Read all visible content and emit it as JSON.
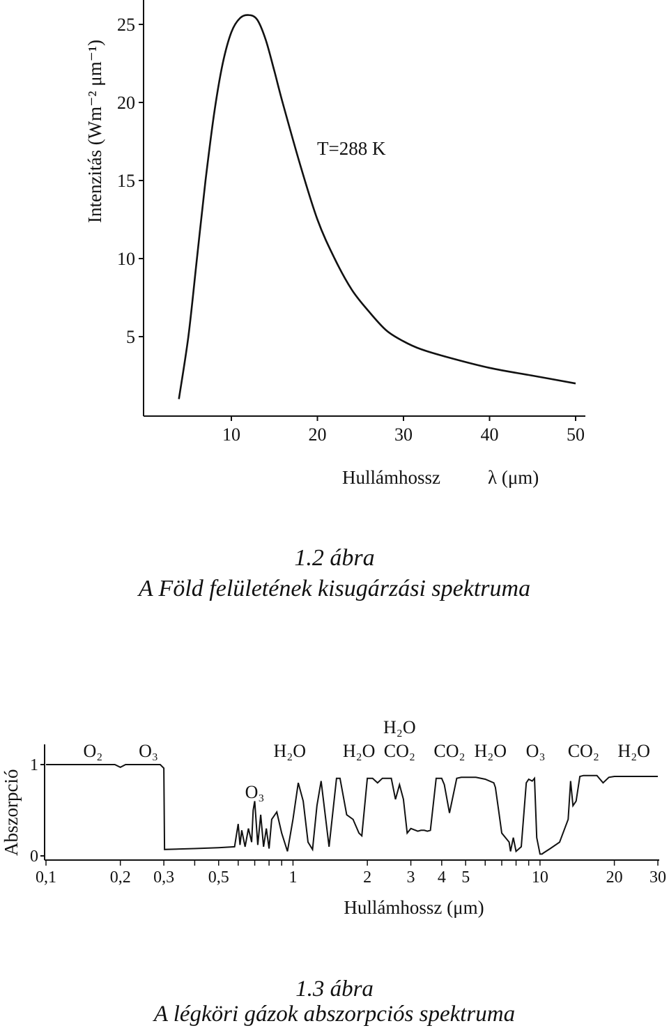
{
  "figure1": {
    "caption_number": "1.2 ábra",
    "caption_title": "A Föld felületének kisugárzási spektruma",
    "chart_data": {
      "type": "line",
      "ylabel": "Intenzitás (Wm⁻² μm⁻¹)",
      "xlabel_text": "Hullámhossz",
      "xlabel_unit": "λ (μm)",
      "annotation": "T=288 K",
      "x_ticks": [
        "10",
        "20",
        "30",
        "40",
        "50"
      ],
      "y_ticks": [
        "5",
        "10",
        "15",
        "20",
        "25"
      ],
      "xlim": [
        0,
        51
      ],
      "ylim": [
        0,
        27
      ],
      "grid": false,
      "series": [
        {
          "x": [
            3.9,
            5,
            6,
            7,
            8,
            9,
            10,
            11,
            12,
            13,
            14,
            15,
            16,
            18,
            20,
            22,
            24,
            26,
            28,
            30,
            32,
            35,
            40,
            45,
            50
          ],
          "y": [
            1,
            5,
            10,
            15,
            19.3,
            22.5,
            24.5,
            25.4,
            25.6,
            25.3,
            24,
            22,
            19.9,
            16,
            12.5,
            10,
            8,
            6.6,
            5.4,
            4.7,
            4.2,
            3.7,
            3.0,
            2.5,
            2.0
          ]
        }
      ]
    }
  },
  "figure2": {
    "caption_number": "1.3 ábra",
    "caption_title": "A légköri gázok abszorpciós spektruma",
    "chart_data": {
      "type": "line",
      "xscale": "log",
      "ylabel": "Abszorpció",
      "xlabel": "Hullámhossz (μm)",
      "x_ticks": [
        "0,1",
        "0,2",
        "0,3",
        "0,5",
        "1",
        "2",
        "3",
        "4",
        "5",
        "10",
        "20",
        "30"
      ],
      "y_ticks": [
        "0",
        "1"
      ],
      "xlim": [
        0.1,
        30
      ],
      "ylim": [
        0,
        1.1
      ],
      "gas_labels": [
        {
          "text": "O₂",
          "x": 0.155
        },
        {
          "text": "O₃",
          "x": 0.26
        },
        {
          "text": "O₃",
          "x": 0.7
        },
        {
          "text": "H₂O",
          "x": 0.97
        },
        {
          "text": "H₂O",
          "x": 1.85
        },
        {
          "text": "H₂O",
          "x": 2.7
        },
        {
          "text": "CO₂",
          "x": 2.7
        },
        {
          "text": "CO₂",
          "x": 4.3
        },
        {
          "text": "H₂O",
          "x": 6.3
        },
        {
          "text": "O₃",
          "x": 9.6
        },
        {
          "text": "CO₂",
          "x": 15
        },
        {
          "text": "H₂O",
          "x": 24
        }
      ],
      "series": [
        {
          "x": [
            0.1,
            0.19,
            0.2,
            0.21,
            0.29,
            0.3,
            0.302,
            0.4,
            0.5,
            0.58,
            0.6,
            0.61,
            0.62,
            0.64,
            0.66,
            0.68,
            0.69,
            0.7,
            0.72,
            0.74,
            0.76,
            0.78,
            0.8,
            0.82,
            0.86,
            0.9,
            0.95,
            1.0,
            1.05,
            1.1,
            1.15,
            1.2,
            1.25,
            1.3,
            1.4,
            1.5,
            1.55,
            1.65,
            1.75,
            1.85,
            1.9,
            2.0,
            2.1,
            2.2,
            2.3,
            2.5,
            2.6,
            2.7,
            2.8,
            2.9,
            3.0,
            3.2,
            3.3,
            3.4,
            3.5,
            3.6,
            3.8,
            4.0,
            4.1,
            4.3,
            4.6,
            4.8,
            5.2,
            5.5,
            6.0,
            6.5,
            6.6,
            6.8,
            7.0,
            7.5,
            7.6,
            7.8,
            8.0,
            8.4,
            8.8,
            9.0,
            9.3,
            9.5,
            9.7,
            10.0,
            10.2,
            10.3,
            11,
            12,
            13,
            13.3,
            13.6,
            14,
            14.5,
            15,
            16,
            17,
            17.5,
            18,
            19,
            20,
            22,
            25,
            28,
            30
          ],
          "y": [
            1.0,
            1.0,
            0.97,
            1.0,
            1.0,
            0.96,
            0.07,
            0.08,
            0.09,
            0.1,
            0.35,
            0.12,
            0.28,
            0.1,
            0.3,
            0.15,
            0.5,
            0.6,
            0.12,
            0.45,
            0.1,
            0.3,
            0.08,
            0.4,
            0.48,
            0.25,
            0.05,
            0.4,
            0.8,
            0.6,
            0.15,
            0.07,
            0.55,
            0.82,
            0.1,
            0.85,
            0.85,
            0.45,
            0.4,
            0.25,
            0.22,
            0.85,
            0.85,
            0.8,
            0.85,
            0.85,
            0.62,
            0.78,
            0.62,
            0.25,
            0.3,
            0.27,
            0.28,
            0.28,
            0.27,
            0.28,
            0.85,
            0.85,
            0.78,
            0.47,
            0.85,
            0.86,
            0.86,
            0.86,
            0.84,
            0.8,
            0.75,
            0.5,
            0.25,
            0.15,
            0.05,
            0.2,
            0.05,
            0.1,
            0.8,
            0.84,
            0.82,
            0.85,
            0.2,
            0.02,
            0.02,
            0.03,
            0.08,
            0.15,
            0.4,
            0.82,
            0.55,
            0.6,
            0.87,
            0.88,
            0.88,
            0.88,
            0.84,
            0.8,
            0.86,
            0.87,
            0.87,
            0.87,
            0.87,
            0.87
          ]
        }
      ]
    }
  }
}
